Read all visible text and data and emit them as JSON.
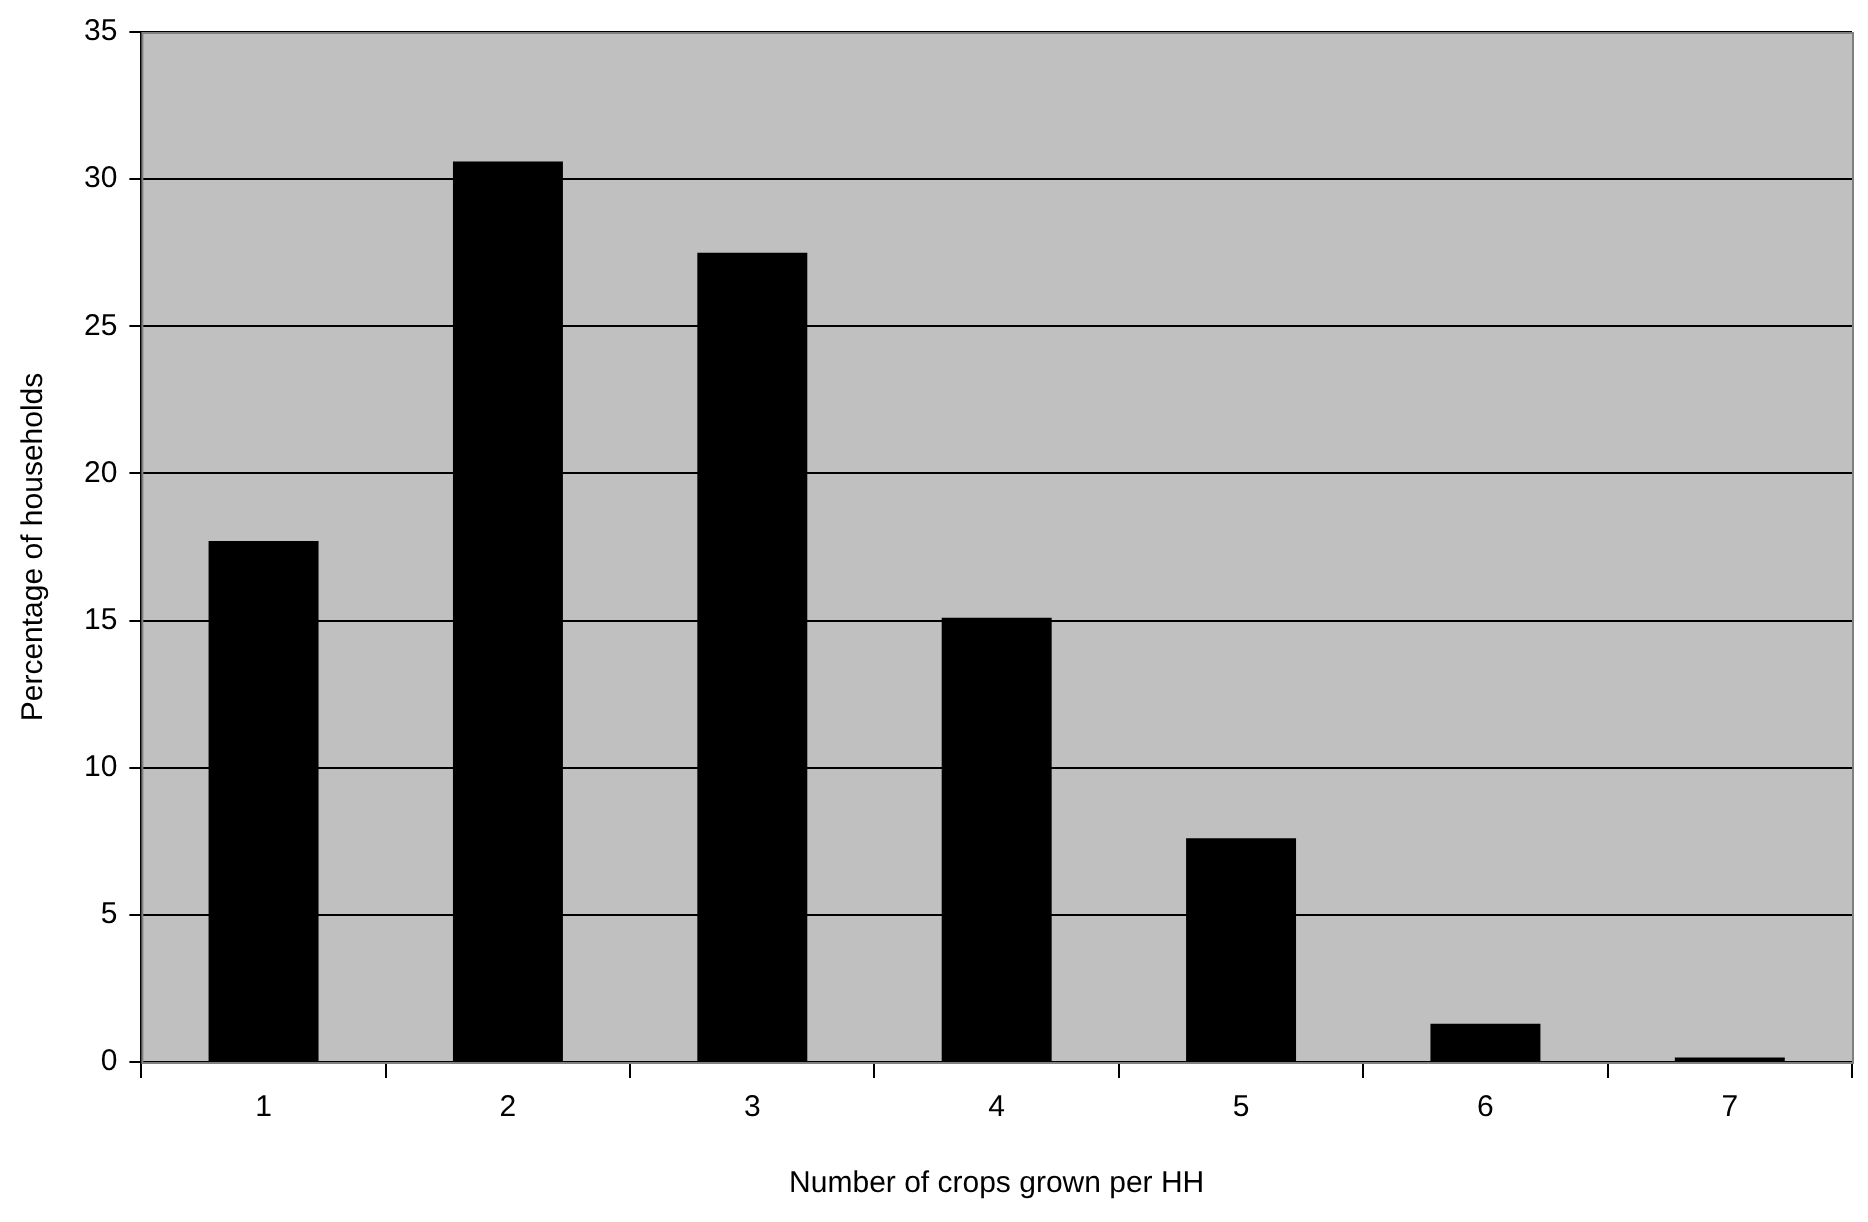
{
  "chart_data": {
    "type": "bar",
    "xlabel": "Number of crops grown per HH",
    "ylabel": "Percentage of households",
    "categories": [
      "1",
      "2",
      "3",
      "4",
      "5",
      "6",
      "7"
    ],
    "values": [
      17.7,
      30.6,
      27.5,
      15.1,
      7.6,
      1.3,
      0.15
    ],
    "color": "#000000",
    "ylim": [
      0,
      35
    ],
    "yticks": [
      0,
      5,
      10,
      15,
      20,
      25,
      30,
      35
    ],
    "grid": "y",
    "legend": false
  }
}
